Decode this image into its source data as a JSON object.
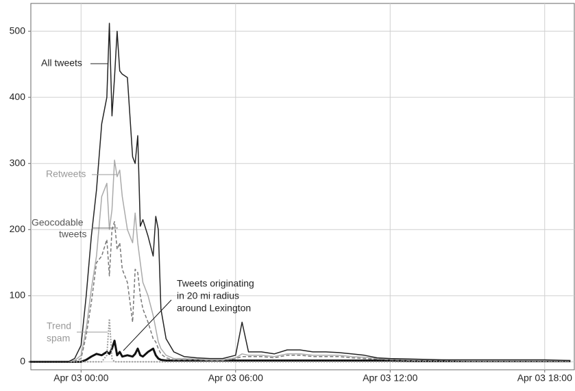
{
  "chart_data": {
    "type": "line",
    "x": [
      -2,
      -1.5,
      -1,
      -0.5,
      -0.25,
      0,
      0.2,
      0.4,
      0.6,
      0.8,
      1.0,
      1.1,
      1.2,
      1.3,
      1.4,
      1.5,
      1.6,
      1.8,
      2.0,
      2.1,
      2.2,
      2.3,
      2.4,
      2.6,
      2.8,
      2.9,
      3.0,
      3.1,
      3.3,
      3.6,
      4,
      4.5,
      5,
      5.5,
      6,
      6.25,
      6.5,
      7,
      7.5,
      8,
      8.5,
      9,
      9.5,
      10,
      10.5,
      11,
      11.5,
      12,
      13,
      14,
      15,
      16,
      17,
      18,
      19
    ],
    "series": [
      {
        "name": "All tweets",
        "color": "#222222",
        "width": 1.5,
        "values": [
          0,
          0,
          0,
          0,
          5,
          25,
          100,
          190,
          260,
          360,
          400,
          512,
          372,
          430,
          500,
          440,
          435,
          430,
          310,
          300,
          342,
          205,
          215,
          190,
          160,
          220,
          200,
          80,
          35,
          15,
          8,
          6,
          5,
          5,
          10,
          60,
          15,
          15,
          12,
          18,
          18,
          15,
          15,
          14,
          12,
          10,
          6,
          5,
          4,
          3,
          3,
          3,
          3,
          3,
          2
        ]
      },
      {
        "name": "Retweets",
        "color": "#aaaaaa",
        "width": 1.5,
        "values": [
          0,
          0,
          0,
          0,
          2,
          10,
          50,
          110,
          160,
          250,
          270,
          200,
          230,
          305,
          280,
          290,
          250,
          200,
          180,
          225,
          180,
          150,
          120,
          100,
          70,
          50,
          30,
          20,
          10,
          5,
          5,
          4,
          3,
          3,
          6,
          12,
          10,
          10,
          8,
          12,
          12,
          10,
          10,
          10,
          8,
          7,
          5,
          4,
          3,
          3,
          2,
          2,
          2,
          2,
          2
        ]
      },
      {
        "name": "Geocodable tweets",
        "color": "#777777",
        "width": 1.5,
        "dash": "5,3",
        "values": [
          0,
          0,
          0,
          0,
          1,
          5,
          40,
          90,
          150,
          160,
          185,
          130,
          200,
          212,
          170,
          180,
          140,
          120,
          60,
          140,
          135,
          100,
          80,
          60,
          35,
          30,
          20,
          12,
          6,
          3,
          3,
          3,
          2,
          2,
          5,
          8,
          8,
          8,
          6,
          10,
          10,
          8,
          8,
          8,
          6,
          5,
          4,
          3,
          2,
          2,
          1,
          1,
          1,
          1,
          1
        ]
      },
      {
        "name": "Trend spam",
        "color": "#999999",
        "width": 2,
        "dash": "2,2",
        "values": [
          0,
          0,
          0,
          0,
          0,
          0,
          0,
          0,
          0,
          0,
          10,
          65,
          5,
          0,
          0,
          0,
          0,
          0,
          0,
          0,
          0,
          0,
          0,
          0,
          0,
          0,
          0,
          0,
          0,
          0,
          0,
          0,
          0,
          0,
          0,
          0,
          0,
          0,
          0,
          0,
          0,
          0,
          0,
          0,
          0,
          0,
          0,
          0,
          0,
          0,
          0,
          0,
          0,
          0,
          0
        ]
      },
      {
        "name": "Tweets originating in 20 mi radius around Lexington",
        "color": "#111111",
        "width": 3,
        "values": [
          0,
          0,
          0,
          0,
          0,
          0,
          3,
          8,
          12,
          10,
          15,
          12,
          20,
          32,
          10,
          15,
          8,
          10,
          8,
          12,
          20,
          10,
          8,
          15,
          20,
          10,
          5,
          3,
          2,
          2,
          2,
          2,
          2,
          2,
          2,
          2,
          2,
          2,
          2,
          2,
          2,
          2,
          2,
          2,
          2,
          2,
          2,
          2,
          1,
          1,
          1,
          1,
          1,
          1,
          1
        ]
      }
    ],
    "annotations": [
      {
        "lines": [
          "All tweets"
        ]
      },
      {
        "lines": [
          "Retweets"
        ]
      },
      {
        "lines": [
          "Geocodable",
          "tweets"
        ]
      },
      {
        "lines": [
          "Trend",
          "spam"
        ]
      },
      {
        "lines": [
          "Tweets originating",
          "in 20 mi radius",
          "around Lexington"
        ]
      }
    ],
    "xlim": [
      -1.95,
      19.15
    ],
    "xticks": [
      {
        "value": 0,
        "label": "Apr 03 00:00"
      },
      {
        "value": 6,
        "label": "Apr 03 06:00"
      },
      {
        "value": 12,
        "label": "Apr 03 12:00"
      },
      {
        "value": 18,
        "label": "Apr 03 18:00"
      }
    ],
    "ylim": [
      -12,
      542
    ],
    "yticks": [
      0,
      100,
      200,
      300,
      400,
      500
    ],
    "grid": true
  }
}
